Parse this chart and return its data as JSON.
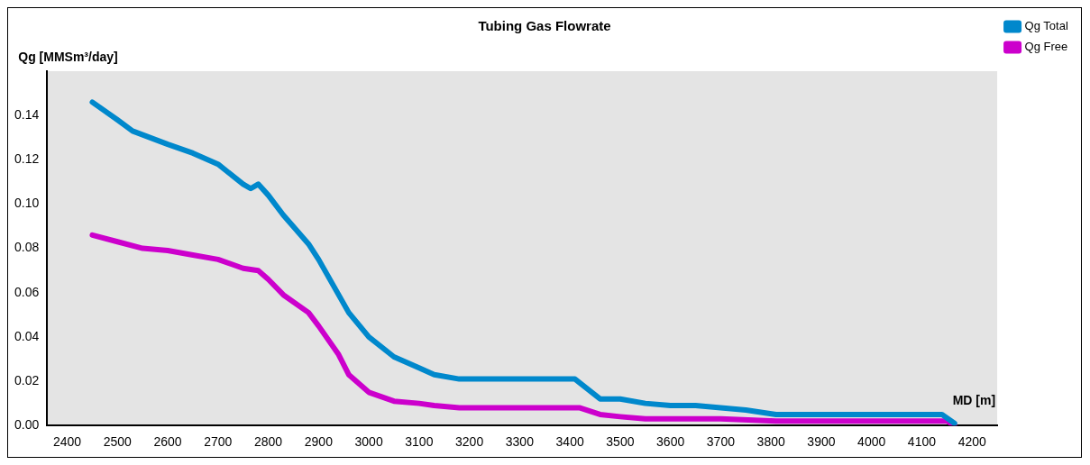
{
  "chart_data": {
    "type": "line",
    "title": "Tubing Gas Flowrate",
    "xlabel": "MD [m]",
    "ylabel": "Qg [MMSm³/day]",
    "legend": "top right",
    "grid": false,
    "marker": "none",
    "line_style": "solid",
    "xlim": [
      2360,
      4250
    ],
    "ylim": [
      0,
      0.16
    ],
    "xticks": [
      2400,
      2500,
      2600,
      2700,
      2800,
      2900,
      3000,
      3100,
      3200,
      3300,
      3400,
      3500,
      3600,
      3700,
      3800,
      3900,
      4000,
      4100,
      4200
    ],
    "yticks": [
      {
        "value": 0,
        "label": "0.00"
      },
      {
        "value": 0.02,
        "label": "0.02"
      },
      {
        "value": 0.04,
        "label": "0.04"
      },
      {
        "value": 0.06,
        "label": "0.06"
      },
      {
        "value": 0.08,
        "label": "0.08"
      },
      {
        "value": 0.1,
        "label": "0.10"
      },
      {
        "value": 0.12,
        "label": "0.12"
      },
      {
        "value": 0.14,
        "label": "0.14"
      }
    ],
    "series": [
      {
        "name": "Qg Total",
        "color": "#0088cc",
        "x": [
          2450,
          2500,
          2530,
          2600,
          2650,
          2700,
          2750,
          2765,
          2780,
          2800,
          2830,
          2880,
          2900,
          2930,
          2960,
          3000,
          3050,
          3100,
          3130,
          3180,
          3410,
          3460,
          3500,
          3550,
          3600,
          3650,
          3700,
          3750,
          3810,
          4140,
          4165
        ],
        "values": [
          0.146,
          0.138,
          0.133,
          0.127,
          0.123,
          0.118,
          0.109,
          0.107,
          0.109,
          0.104,
          0.095,
          0.082,
          0.075,
          0.063,
          0.051,
          0.04,
          0.031,
          0.026,
          0.023,
          0.021,
          0.021,
          0.012,
          0.012,
          0.01,
          0.009,
          0.009,
          0.008,
          0.007,
          0.005,
          0.005,
          0.001
        ]
      },
      {
        "name": "Qg Free",
        "color": "#cc00cc",
        "x": [
          2450,
          2500,
          2550,
          2600,
          2650,
          2700,
          2750,
          2780,
          2800,
          2830,
          2880,
          2900,
          2940,
          2960,
          3000,
          3050,
          3100,
          3130,
          3180,
          3420,
          3460,
          3500,
          3550,
          3700,
          3810,
          4150,
          4165
        ],
        "values": [
          0.086,
          0.083,
          0.08,
          0.079,
          0.077,
          0.075,
          0.071,
          0.07,
          0.066,
          0.059,
          0.051,
          0.045,
          0.032,
          0.023,
          0.015,
          0.011,
          0.01,
          0.009,
          0.008,
          0.008,
          0.005,
          0.004,
          0.003,
          0.003,
          0.002,
          0.002,
          0
        ]
      }
    ]
  }
}
